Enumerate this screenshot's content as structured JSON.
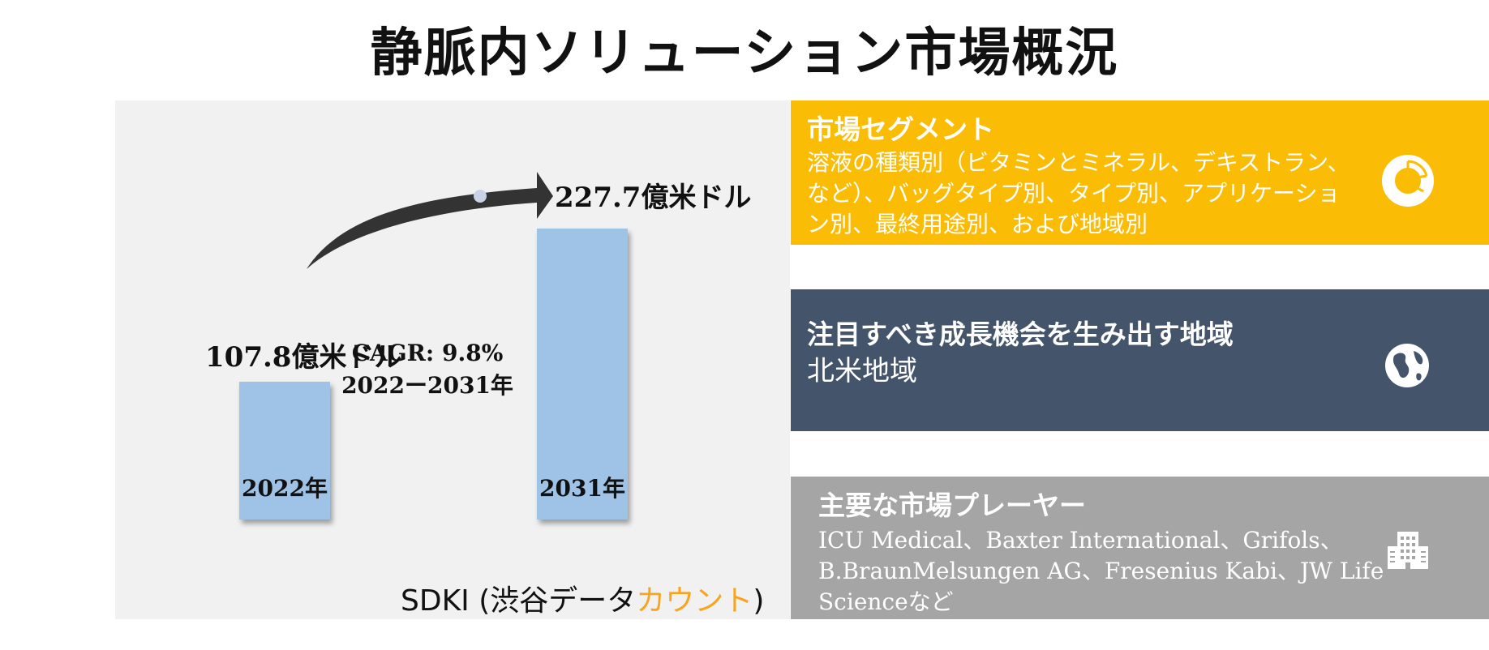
{
  "title": "静脈内ソリューション市場概況",
  "chart_data": {
    "type": "bar",
    "categories": [
      "2022年",
      "2031年"
    ],
    "values": [
      107.8,
      227.7
    ],
    "value_labels": [
      "107.8億米ドル",
      "227.7億米ドル"
    ],
    "unit": "億米ドル",
    "cagr_text": "CAGR: 9.8%",
    "period_text": "2022ー2031年"
  },
  "brand": {
    "prefix": "SDKI (渋谷データ",
    "accent": "カウント",
    "suffix": ")",
    "accent_color": "#f7a521"
  },
  "segments_box": {
    "heading": "市場セグメント",
    "body": "溶液の種類別（ビタミンとミネラル、デキストラン、など）、バッグタイプ別、タイプ別、アプリケーション別、最終用途別、および地域別",
    "color": "#fbbc05",
    "icon": "donut-chart-icon"
  },
  "region_box": {
    "heading": "注目すべき成長機会を生み出す地域",
    "body": "北米地域",
    "color": "#44546a",
    "icon": "globe-icon"
  },
  "players_box": {
    "heading": "主要な市場プレーヤー",
    "body": "ICU Medical、Baxter International、Grifols、B.BraunMelsungen AG、Fresenius Kabi、JW Life Scienceなど",
    "color": "#a5a5a5",
    "icon": "building-icon"
  }
}
